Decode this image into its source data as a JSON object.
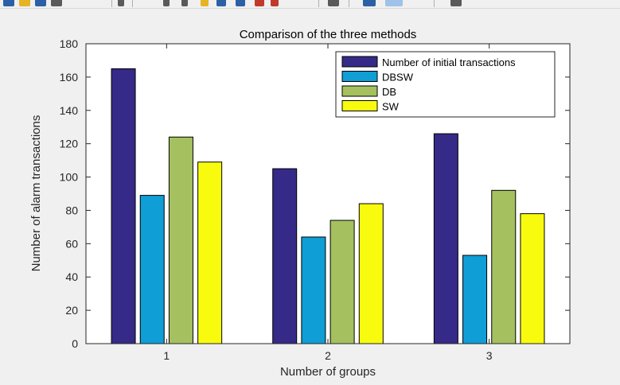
{
  "toolbar": {
    "icons": [
      "new-figure-icon",
      "open-file-icon",
      "save-icon",
      "print-icon",
      "edit-plot-icon",
      "zoom-in-icon",
      "zoom-out-icon",
      "pan-icon",
      "rotate-icon",
      "data-cursor-icon",
      "brush-icon",
      "link-icon",
      "colorbar-icon",
      "legend-icon",
      "plot-tools-icon"
    ],
    "colors": {
      "blue": "#2d5fa6",
      "yellow": "#e6b422",
      "red": "#c0392b",
      "gray": "#5a5a5a"
    }
  },
  "chart_data": {
    "type": "bar",
    "title": "Comparison of the three methods",
    "xlabel": "Number of groups",
    "ylabel": "Number of alarm transactions",
    "categories": [
      "1",
      "2",
      "3"
    ],
    "ylim": [
      0,
      180
    ],
    "yticks": [
      "0",
      "20",
      "40",
      "60",
      "80",
      "100",
      "120",
      "140",
      "160",
      "180"
    ],
    "grid": false,
    "legend_position": "top-right",
    "series": [
      {
        "name": "Number of initial transactions",
        "color": "#352a87",
        "values": [
          165,
          105,
          126
        ]
      },
      {
        "name": "DBSW",
        "color": "#0f9ed5",
        "values": [
          89,
          64,
          53
        ]
      },
      {
        "name": "DB",
        "color": "#a5c15f",
        "values": [
          124,
          74,
          92
        ]
      },
      {
        "name": "SW",
        "color": "#f9fb0e",
        "values": [
          109,
          84,
          78
        ]
      }
    ]
  }
}
